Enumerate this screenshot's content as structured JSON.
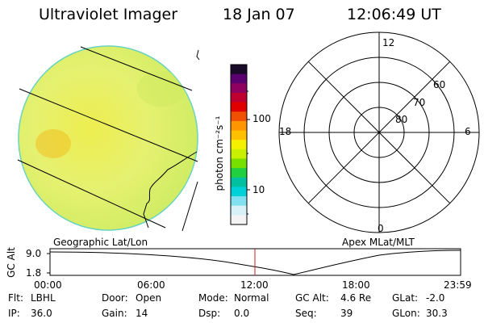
{
  "header": {
    "instrument": "Ultraviolet Imager",
    "date": "18 Jan 07",
    "time": "12:06:49 UT"
  },
  "colorbar": {
    "unit_label": "photon cm⁻²s⁻¹",
    "ticks": [
      "100",
      "10"
    ],
    "colors": [
      "#1a0a2a",
      "#5a0070",
      "#900060",
      "#c00030",
      "#e00000",
      "#f05000",
      "#ff9500",
      "#ffc000",
      "#f4f000",
      "#c8f000",
      "#78e000",
      "#20d040",
      "#00c0a0",
      "#00d0d8",
      "#80e0f0",
      "#d8f0f8",
      "#f4f4f4"
    ]
  },
  "geo_panel": {
    "label": "Geographic Lat/Lon"
  },
  "polar_panel": {
    "label": "Apex MLat/MLT",
    "mlt_labels": {
      "top": "12",
      "bottom": "0",
      "left": "18",
      "right": "6"
    },
    "lat_labels": [
      "60",
      "70",
      "80"
    ]
  },
  "altitude_plot": {
    "ylabel": "GC Alt",
    "yticks": [
      "9.0",
      "1.8"
    ],
    "xticks": [
      "00:00",
      "06:00",
      "12:00",
      "18:00",
      "23:59"
    ]
  },
  "status": {
    "row1": [
      {
        "label": "Flt:",
        "value": "LBHL"
      },
      {
        "label": "Door:",
        "value": "Open"
      },
      {
        "label": "Mode:",
        "value": "Normal"
      },
      {
        "label": "GC Alt:",
        "value": "4.6 Re"
      },
      {
        "label": "GLat:",
        "value": "-2.0"
      }
    ],
    "row2": [
      {
        "label": "IP:",
        "value": "36.0"
      },
      {
        "label": "Gain:",
        "value": "14"
      },
      {
        "label": "Dsp:",
        "value": "0.0"
      },
      {
        "label": "Seq:",
        "value": "39"
      },
      {
        "label": "GLon:",
        "value": "30.3"
      }
    ]
  }
}
